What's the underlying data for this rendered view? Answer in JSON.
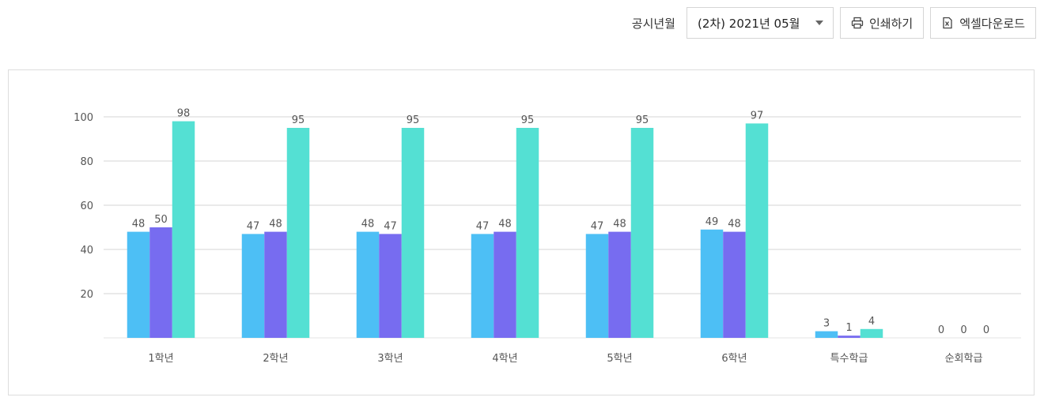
{
  "toolbar": {
    "period_label": "공시년월",
    "period_selected": "(2차) 2021년 05월",
    "print_label": "인쇄하기",
    "excel_label": "엑셀다운로드"
  },
  "chart_data": {
    "type": "bar",
    "categories": [
      "1학년",
      "2학년",
      "3학년",
      "4학년",
      "5학년",
      "6학년",
      "특수학급",
      "순회학급"
    ],
    "series": [
      {
        "values": [
          48,
          47,
          48,
          47,
          47,
          49,
          3,
          0
        ],
        "color": "#4dbff5"
      },
      {
        "values": [
          50,
          48,
          47,
          48,
          48,
          48,
          1,
          0
        ],
        "color": "#776cf0"
      },
      {
        "values": [
          98,
          95,
          95,
          95,
          95,
          97,
          4,
          0
        ],
        "color": "#54e0d3"
      }
    ],
    "yticks": [
      20,
      40,
      60,
      80,
      100
    ],
    "ylim": [
      0,
      100
    ],
    "grid": true,
    "colors": {
      "grid": "#d6d6d6",
      "axis_text": "#555555",
      "label_text": "#555555"
    }
  }
}
